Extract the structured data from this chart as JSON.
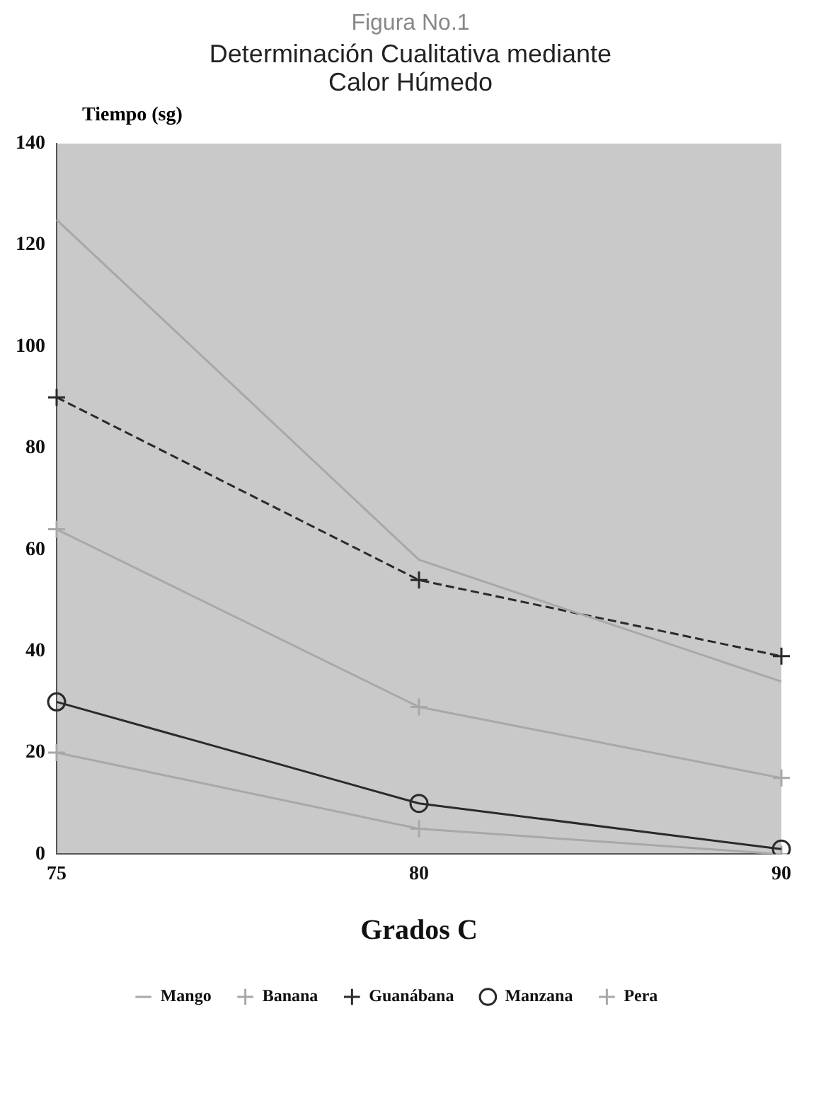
{
  "chart_data": {
    "type": "line",
    "title": "Figura No.1",
    "subtitle": "Determinación Cualitativa mediante Calor Húmedo",
    "xlabel": "Grados C",
    "ylabel": "Tiempo (sg)",
    "categories": [
      "75",
      "80",
      "90"
    ],
    "ylim": [
      0,
      140
    ],
    "yticks": [
      0,
      20,
      40,
      60,
      80,
      100,
      120,
      140
    ],
    "grid": false,
    "legend": "bottom",
    "series": [
      {
        "name": "Mango",
        "color": "#a8a8a8",
        "values": [
          125,
          58,
          34
        ],
        "marker": "none",
        "line_style": "solid"
      },
      {
        "name": "Banana",
        "color": "#a8a8a8",
        "values": [
          64,
          29,
          15
        ],
        "marker": "cross",
        "line_style": "solid"
      },
      {
        "name": "Guanábana",
        "color": "#2a2a2a",
        "values": [
          90,
          54,
          39
        ],
        "marker": "cross",
        "line_style": "dashed"
      },
      {
        "name": "Manzana",
        "color": "#2a2a2a",
        "values": [
          30,
          10,
          1
        ],
        "marker": "circle",
        "line_style": "solid"
      },
      {
        "name": "Pera",
        "color": "#a8a8a8",
        "values": [
          20,
          5,
          0
        ],
        "marker": "cross",
        "line_style": "solid"
      }
    ]
  }
}
